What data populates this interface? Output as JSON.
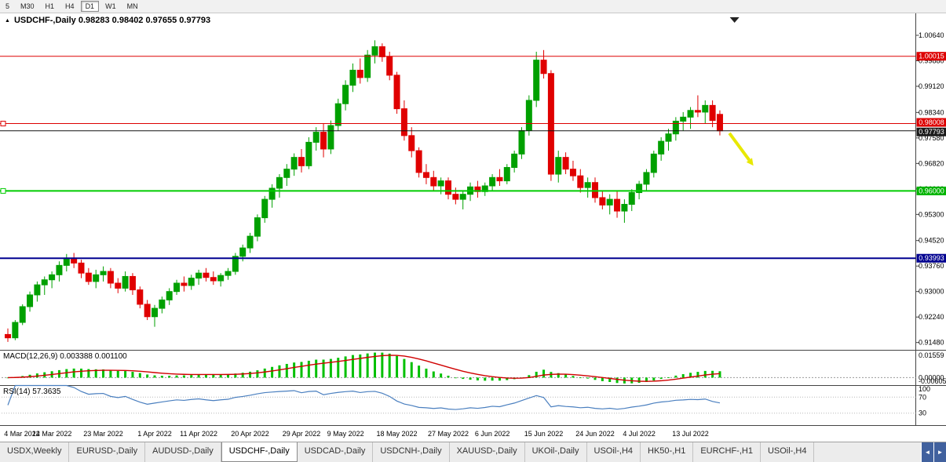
{
  "toolbar": {
    "timeframes": [
      "5",
      "M30",
      "H1",
      "H4",
      "D1",
      "W1",
      "MN"
    ],
    "active": "D1"
  },
  "tab_nav": {
    "left": "◄",
    "right": "►"
  },
  "tabs": [
    {
      "label": "USDX,Weekly",
      "active": false
    },
    {
      "label": "EURUSD-,Daily",
      "active": false
    },
    {
      "label": "AUDUSD-,Daily",
      "active": false
    },
    {
      "label": "USDCHF-,Daily",
      "active": true
    },
    {
      "label": "USDCAD-,Daily",
      "active": false
    },
    {
      "label": "USDCNH-,Daily",
      "active": false
    },
    {
      "label": "XAUUSD-,Daily",
      "active": false
    },
    {
      "label": "UKOil-,Daily",
      "active": false
    },
    {
      "label": "USOil-,H4",
      "active": false
    },
    {
      "label": "HK50-,H1",
      "active": false
    },
    {
      "label": "EURCHF-,H1",
      "active": false
    },
    {
      "label": "USOil-,H4",
      "active": false
    }
  ],
  "chart_data": {
    "type": "candlestick",
    "symbol": "USDCHF-,Daily",
    "ohlc_text": "0.98283 0.98402 0.97655 0.97793",
    "up_color": "#00A000",
    "down_color": "#E00000",
    "ylim": [
      0.9126,
      1.013
    ],
    "yticks": [
      1.0064,
      0.9988,
      0.9912,
      0.9834,
      0.9758,
      0.9682,
      0.9606,
      0.953,
      0.9452,
      0.9376,
      0.93,
      0.9224,
      0.9148
    ],
    "x_labels": [
      {
        "index": 0,
        "label": "4 Mar 2022"
      },
      {
        "index": 6,
        "label": "14 Mar 2022"
      },
      {
        "index": 13,
        "label": "23 Mar 2022"
      },
      {
        "index": 20,
        "label": "1 Apr 2022"
      },
      {
        "index": 26,
        "label": "11 Apr 2022"
      },
      {
        "index": 33,
        "label": "20 Apr 2022"
      },
      {
        "index": 40,
        "label": "29 Apr 2022"
      },
      {
        "index": 46,
        "label": "9 May 2022"
      },
      {
        "index": 53,
        "label": "18 May 2022"
      },
      {
        "index": 60,
        "label": "27 May 2022"
      },
      {
        "index": 66,
        "label": "6 Jun 2022"
      },
      {
        "index": 73,
        "label": "15 Jun 2022"
      },
      {
        "index": 80,
        "label": "24 Jun 2022"
      },
      {
        "index": 86,
        "label": "4 Jul 2022"
      },
      {
        "index": 93,
        "label": "13 Jul 2022"
      }
    ],
    "hlines": [
      {
        "value": 1.00015,
        "label": "1.00015",
        "color": "#dd0000",
        "badge_bg": "#dd0000",
        "width": 1,
        "handle": false,
        "badge_dy": 0
      },
      {
        "value": 0.98008,
        "label": "0.98008",
        "color": "#dd0000",
        "badge_bg": "#dd0000",
        "width": 1,
        "handle": true,
        "badge_dy": -1.5
      },
      {
        "value": 0.97793,
        "label": "0.97793",
        "color": "#111111",
        "badge_bg": "#1a1a1a",
        "width": 1,
        "handle": false,
        "badge_dy": 1.5
      },
      {
        "value": 0.96,
        "label": "0.96000",
        "color": "#00cc00",
        "badge_bg": "#00b300",
        "width": 2,
        "handle": true,
        "badge_dy": 0
      },
      {
        "value": 0.93993,
        "label": "0.93993",
        "color": "#000090",
        "badge_bg": "#000090",
        "width": 2,
        "handle": false,
        "badge_dy": 0
      }
    ],
    "indicators": {
      "macd": {
        "label": "MACD(12,26,9) 0.003388 0.001100",
        "params": [
          12,
          26,
          9
        ],
        "values_text": [
          "0.003388",
          "0.001100"
        ],
        "axis_labels": [
          "0.01559",
          "0.00000",
          "-0.00605"
        ],
        "histogram_color": "#00C000",
        "signal_color": "#D00000"
      },
      "rsi": {
        "label": "RSI(14) 57.3635",
        "period": 14,
        "value_text": "57.3635",
        "axis_labels": [
          100,
          70,
          30
        ],
        "line_color": "#4a7fbf"
      }
    },
    "annotation_arrow": {
      "color": "#E8E800",
      "from_index": 98.3,
      "from_price": 0.9772,
      "to_index": 101,
      "to_price": 0.9692
    },
    "shift_marker_index": 99,
    "candles": [
      [
        0.9172,
        0.919,
        0.915,
        0.9162
      ],
      [
        0.9162,
        0.9215,
        0.9155,
        0.9208
      ],
      [
        0.9208,
        0.9262,
        0.92,
        0.9255
      ],
      [
        0.9255,
        0.93,
        0.924,
        0.929
      ],
      [
        0.929,
        0.933,
        0.927,
        0.932
      ],
      [
        0.932,
        0.9345,
        0.929,
        0.9335
      ],
      [
        0.9335,
        0.936,
        0.931,
        0.935
      ],
      [
        0.935,
        0.939,
        0.933,
        0.9378
      ],
      [
        0.9378,
        0.9412,
        0.936,
        0.94
      ],
      [
        0.94,
        0.9415,
        0.937,
        0.9385
      ],
      [
        0.9385,
        0.9395,
        0.934,
        0.9355
      ],
      [
        0.9355,
        0.937,
        0.932,
        0.933
      ],
      [
        0.933,
        0.9365,
        0.931,
        0.935
      ],
      [
        0.935,
        0.9375,
        0.933,
        0.936
      ],
      [
        0.936,
        0.937,
        0.931,
        0.9325
      ],
      [
        0.9325,
        0.934,
        0.9295,
        0.931
      ],
      [
        0.931,
        0.936,
        0.93,
        0.9345
      ],
      [
        0.9345,
        0.9355,
        0.929,
        0.9305
      ],
      [
        0.9305,
        0.9315,
        0.925,
        0.9262
      ],
      [
        0.9262,
        0.9275,
        0.9215,
        0.9225
      ],
      [
        0.9225,
        0.926,
        0.9195,
        0.925
      ],
      [
        0.925,
        0.9285,
        0.9235,
        0.9275
      ],
      [
        0.9275,
        0.931,
        0.926,
        0.93
      ],
      [
        0.93,
        0.9335,
        0.929,
        0.9325
      ],
      [
        0.9325,
        0.9345,
        0.93,
        0.9318
      ],
      [
        0.9318,
        0.935,
        0.9305,
        0.934
      ],
      [
        0.934,
        0.9365,
        0.932,
        0.9355
      ],
      [
        0.9355,
        0.937,
        0.933,
        0.9342
      ],
      [
        0.9342,
        0.936,
        0.932,
        0.9332
      ],
      [
        0.9332,
        0.9355,
        0.9315,
        0.9348
      ],
      [
        0.9348,
        0.937,
        0.9335,
        0.936
      ],
      [
        0.936,
        0.9415,
        0.935,
        0.9405
      ],
      [
        0.9405,
        0.944,
        0.939,
        0.943
      ],
      [
        0.943,
        0.9475,
        0.9415,
        0.9465
      ],
      [
        0.9465,
        0.953,
        0.945,
        0.952
      ],
      [
        0.952,
        0.9585,
        0.9505,
        0.9575
      ],
      [
        0.9575,
        0.962,
        0.955,
        0.9608
      ],
      [
        0.9608,
        0.965,
        0.958,
        0.964
      ],
      [
        0.964,
        0.968,
        0.9615,
        0.9665
      ],
      [
        0.9665,
        0.9712,
        0.9645,
        0.97
      ],
      [
        0.97,
        0.9725,
        0.9655,
        0.9675
      ],
      [
        0.9675,
        0.976,
        0.9665,
        0.9745
      ],
      [
        0.9745,
        0.979,
        0.972,
        0.9775
      ],
      [
        0.9775,
        0.98,
        0.97,
        0.9725
      ],
      [
        0.9725,
        0.981,
        0.971,
        0.9795
      ],
      [
        0.9795,
        0.9875,
        0.978,
        0.986
      ],
      [
        0.986,
        0.993,
        0.984,
        0.9915
      ],
      [
        0.9915,
        0.998,
        0.9895,
        0.996
      ],
      [
        0.996,
        0.9995,
        0.992,
        0.9938
      ],
      [
        0.9938,
        1.002,
        0.9925,
        1.0005
      ],
      [
        1.0005,
        1.0049,
        0.998,
        1.003
      ],
      [
        1.003,
        1.004,
        0.9985,
        1.0
      ],
      [
        1.0,
        1.0015,
        0.993,
        0.9945
      ],
      [
        0.9945,
        0.9955,
        0.983,
        0.9845
      ],
      [
        0.9845,
        0.987,
        0.975,
        0.9765
      ],
      [
        0.9765,
        0.979,
        0.97,
        0.972
      ],
      [
        0.972,
        0.973,
        0.964,
        0.9655
      ],
      [
        0.9655,
        0.968,
        0.962,
        0.964
      ],
      [
        0.964,
        0.966,
        0.96,
        0.9615
      ],
      [
        0.9615,
        0.964,
        0.959,
        0.963
      ],
      [
        0.963,
        0.964,
        0.9575,
        0.959
      ],
      [
        0.959,
        0.961,
        0.956,
        0.9575
      ],
      [
        0.9575,
        0.96,
        0.9545,
        0.959
      ],
      [
        0.959,
        0.9625,
        0.957,
        0.9612
      ],
      [
        0.9612,
        0.963,
        0.958,
        0.9598
      ],
      [
        0.9598,
        0.9625,
        0.9585,
        0.9615
      ],
      [
        0.9615,
        0.965,
        0.96,
        0.964
      ],
      [
        0.964,
        0.9665,
        0.9615,
        0.963
      ],
      [
        0.963,
        0.968,
        0.962,
        0.967
      ],
      [
        0.967,
        0.972,
        0.9655,
        0.971
      ],
      [
        0.971,
        0.979,
        0.9695,
        0.978
      ],
      [
        0.978,
        0.9885,
        0.9765,
        0.987
      ],
      [
        0.987,
        1.0015,
        0.985,
        0.999
      ],
      [
        0.999,
        1.002,
        0.9935,
        0.995
      ],
      [
        0.995,
        0.996,
        0.963,
        0.965
      ],
      [
        0.965,
        0.972,
        0.9625,
        0.97
      ],
      [
        0.97,
        0.9715,
        0.965,
        0.9665
      ],
      [
        0.9665,
        0.969,
        0.963,
        0.9645
      ],
      [
        0.9645,
        0.9665,
        0.9595,
        0.961
      ],
      [
        0.961,
        0.964,
        0.958,
        0.9625
      ],
      [
        0.9625,
        0.964,
        0.9565,
        0.958
      ],
      [
        0.958,
        0.96,
        0.9545,
        0.9558
      ],
      [
        0.9558,
        0.959,
        0.953,
        0.9575
      ],
      [
        0.9575,
        0.96,
        0.952,
        0.954
      ],
      [
        0.954,
        0.9575,
        0.9505,
        0.956
      ],
      [
        0.956,
        0.9605,
        0.954,
        0.9595
      ],
      [
        0.9595,
        0.963,
        0.9575,
        0.962
      ],
      [
        0.962,
        0.9665,
        0.96,
        0.9655
      ],
      [
        0.9655,
        0.972,
        0.964,
        0.971
      ],
      [
        0.971,
        0.976,
        0.969,
        0.9748
      ],
      [
        0.9748,
        0.9785,
        0.972,
        0.977
      ],
      [
        0.977,
        0.982,
        0.975,
        0.9808
      ],
      [
        0.9808,
        0.9835,
        0.978,
        0.982
      ],
      [
        0.982,
        0.985,
        0.9785,
        0.984
      ],
      [
        0.984,
        0.9885,
        0.982,
        0.9835
      ],
      [
        0.9835,
        0.987,
        0.98,
        0.9855
      ],
      [
        0.9855,
        0.987,
        0.979,
        0.981
      ],
      [
        0.98283,
        0.98402,
        0.97655,
        0.97793
      ]
    ]
  }
}
